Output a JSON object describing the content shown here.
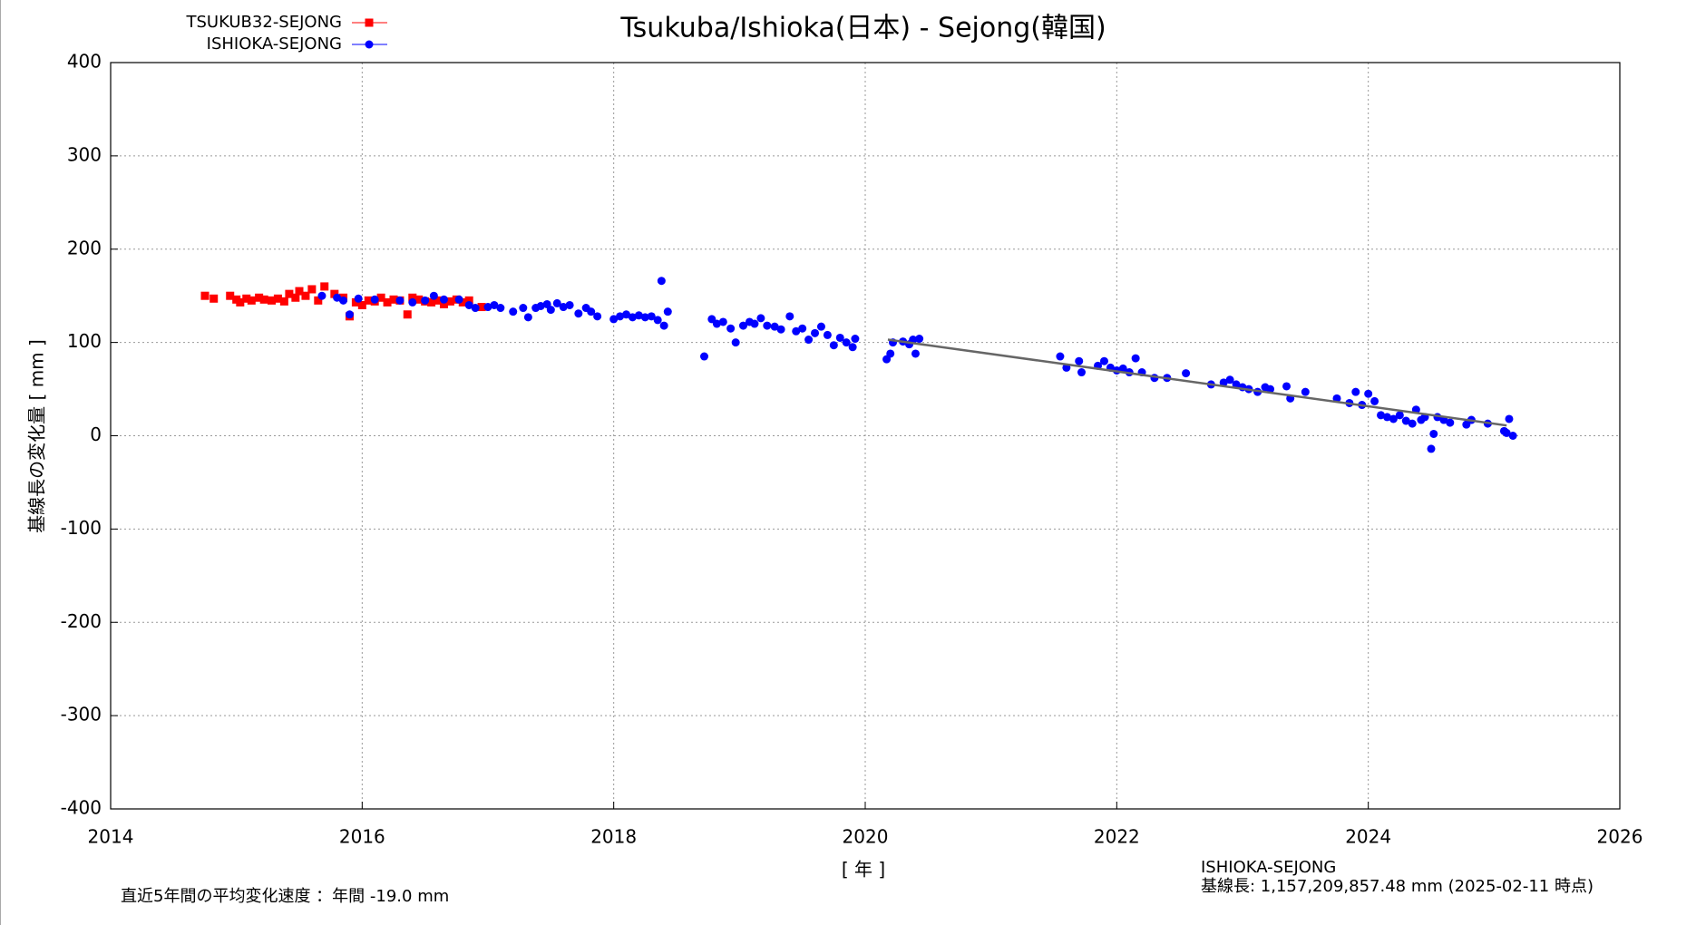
{
  "chart_data": {
    "type": "scatter",
    "title": "Tsukuba/Ishioka(日本) - Sejong(韓国)",
    "x_label": "[ 年 ]",
    "y_label": "基線長の変化量 [ mm ]",
    "xlim": [
      2014,
      2026
    ],
    "xticks": [
      2014,
      2016,
      2018,
      2020,
      2022,
      2024,
      2026
    ],
    "ylim": [
      -400,
      400
    ],
    "yticks": [
      -400,
      -300,
      -200,
      -100,
      0,
      100,
      200,
      300,
      400
    ],
    "grid": true,
    "legend": "top-left",
    "series": [
      {
        "name": "TSUKUB32-SEJONG",
        "color": "#ff0000",
        "marker": "square",
        "x": [
          2014.75,
          2014.82,
          2014.95,
          2015.0,
          2015.03,
          2015.08,
          2015.12,
          2015.18,
          2015.22,
          2015.28,
          2015.33,
          2015.38,
          2015.42,
          2015.47,
          2015.5,
          2015.55,
          2015.6,
          2015.65,
          2015.7,
          2015.78,
          2015.85,
          2015.9,
          2015.95,
          2016.0,
          2016.05,
          2016.1,
          2016.15,
          2016.2,
          2016.25,
          2016.3,
          2016.36,
          2016.4,
          2016.45,
          2016.5,
          2016.55,
          2016.6,
          2016.65,
          2016.7,
          2016.75,
          2016.8,
          2016.85,
          2016.95
        ],
        "values": [
          150,
          147,
          150,
          146,
          143,
          147,
          145,
          148,
          146,
          145,
          147,
          144,
          152,
          148,
          155,
          150,
          157,
          145,
          160,
          152,
          148,
          128,
          143,
          140,
          145,
          144,
          148,
          143,
          146,
          145,
          130,
          148,
          146,
          144,
          143,
          145,
          141,
          144,
          146,
          143,
          145,
          138
        ]
      },
      {
        "name": "ISHIOKA-SEJONG",
        "color": "#0000ff",
        "marker": "circle",
        "x": [
          2015.68,
          2015.8,
          2015.85,
          2015.9,
          2015.97,
          2016.1,
          2016.3,
          2016.4,
          2016.5,
          2016.57,
          2016.65,
          2016.77,
          2016.85,
          2016.9,
          2017.0,
          2017.05,
          2017.1,
          2017.2,
          2017.28,
          2017.32,
          2017.38,
          2017.42,
          2017.47,
          2017.5,
          2017.55,
          2017.6,
          2017.65,
          2017.72,
          2017.78,
          2017.82,
          2017.87,
          2018.0,
          2018.05,
          2018.1,
          2018.15,
          2018.2,
          2018.25,
          2018.3,
          2018.35,
          2018.38,
          2018.4,
          2018.43,
          2018.72,
          2018.78,
          2018.82,
          2018.87,
          2018.93,
          2018.97,
          2019.03,
          2019.08,
          2019.12,
          2019.17,
          2019.22,
          2019.28,
          2019.33,
          2019.4,
          2019.45,
          2019.5,
          2019.55,
          2019.6,
          2019.65,
          2019.7,
          2019.75,
          2019.8,
          2019.85,
          2019.9,
          2019.92,
          2020.17,
          2020.2,
          2020.22,
          2020.3,
          2020.35,
          2020.38,
          2020.4,
          2020.43,
          2021.55,
          2021.6,
          2021.7,
          2021.72,
          2021.85,
          2021.9,
          2021.95,
          2022.0,
          2022.05,
          2022.1,
          2022.15,
          2022.2,
          2022.3,
          2022.4,
          2022.55,
          2022.75,
          2022.85,
          2022.9,
          2022.95,
          2023.0,
          2023.05,
          2023.12,
          2023.18,
          2023.22,
          2023.35,
          2023.38,
          2023.5,
          2023.75,
          2023.85,
          2023.9,
          2023.95,
          2024.0,
          2024.05,
          2024.1,
          2024.15,
          2024.2,
          2024.25,
          2024.3,
          2024.35,
          2024.38,
          2024.42,
          2024.45,
          2024.5,
          2024.52,
          2024.55,
          2024.6,
          2024.65,
          2024.78,
          2024.82,
          2024.95,
          2025.08,
          2025.1,
          2025.12,
          2025.15
        ],
        "values": [
          150,
          148,
          145,
          130,
          147,
          146,
          145,
          143,
          145,
          150,
          146,
          146,
          140,
          137,
          138,
          140,
          137,
          133,
          137,
          127,
          137,
          139,
          141,
          135,
          142,
          138,
          140,
          131,
          137,
          133,
          128,
          125,
          128,
          130,
          127,
          129,
          127,
          128,
          124,
          166,
          118,
          133,
          85,
          125,
          120,
          122,
          115,
          100,
          118,
          122,
          120,
          126,
          118,
          117,
          114,
          128,
          112,
          115,
          103,
          110,
          117,
          108,
          97,
          105,
          100,
          95,
          104,
          82,
          88,
          100,
          101,
          98,
          103,
          88,
          104,
          85,
          73,
          80,
          68,
          75,
          80,
          73,
          70,
          72,
          68,
          83,
          68,
          62,
          62,
          67,
          55,
          57,
          60,
          55,
          52,
          50,
          47,
          52,
          50,
          53,
          40,
          47,
          40,
          35,
          47,
          33,
          45,
          37,
          22,
          20,
          18,
          22,
          16,
          13,
          28,
          17,
          20,
          -14,
          2,
          20,
          17,
          14,
          12,
          17,
          13,
          5,
          3,
          18,
          0
        ]
      }
    ],
    "trend": {
      "color": "#666666",
      "x": [
        2020.18,
        2025.1
      ],
      "values": [
        103,
        11
      ]
    },
    "annotations": [
      "直近5年間の平均変化速度 ：年間 -19.0 mm",
      "ISHIOKA-SEJONG",
      "基線長: 1,157,209,857.48 mm (2025-02-11 時点)"
    ]
  }
}
